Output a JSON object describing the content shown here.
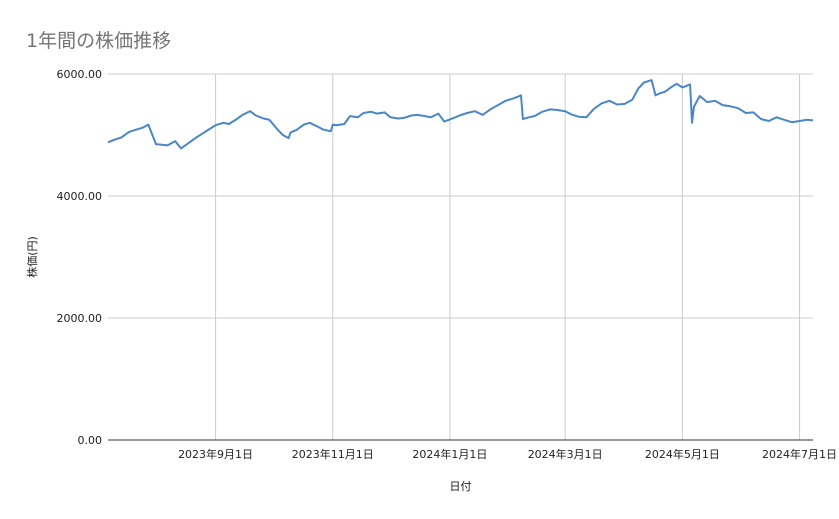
{
  "chart_data": {
    "type": "line",
    "title": "1年間の株価推移",
    "xlabel": "日付",
    "ylabel": "株価(円)",
    "ylim": [
      0,
      6000
    ],
    "yticks": [
      {
        "value": 0,
        "label": "0.00"
      },
      {
        "value": 2000,
        "label": "2000.00"
      },
      {
        "value": 4000,
        "label": "4000.00"
      },
      {
        "value": 6000,
        "label": "6000.00"
      }
    ],
    "xlim": [
      "2023-07-07",
      "2024-07-08"
    ],
    "xticks": [
      {
        "date": "2023-09-01",
        "label": "2023年9月1日"
      },
      {
        "date": "2023-11-01",
        "label": "2023年11月1日"
      },
      {
        "date": "2024-01-01",
        "label": "2024年1月1日"
      },
      {
        "date": "2024-03-01",
        "label": "2024年3月1日"
      },
      {
        "date": "2024-05-01",
        "label": "2024年5月1日"
      },
      {
        "date": "2024-07-01",
        "label": "2024年7月1日"
      }
    ],
    "grid": true,
    "line_color": "#4a86c8",
    "series": [
      {
        "x": [
          "2023-07-07",
          "2023-07-10",
          "2023-07-14",
          "2023-07-18",
          "2023-07-21",
          "2023-07-25",
          "2023-07-28",
          "2023-08-01",
          "2023-08-04",
          "2023-08-07",
          "2023-08-11",
          "2023-08-14",
          "2023-08-18",
          "2023-08-22",
          "2023-08-25",
          "2023-08-29",
          "2023-09-01",
          "2023-09-05",
          "2023-09-08",
          "2023-09-12",
          "2023-09-15",
          "2023-09-19",
          "2023-09-22",
          "2023-09-26",
          "2023-09-29",
          "2023-10-03",
          "2023-10-06",
          "2023-10-09",
          "2023-10-10",
          "2023-10-13",
          "2023-10-17",
          "2023-10-20",
          "2023-10-24",
          "2023-10-27",
          "2023-10-31",
          "2023-11-01",
          "2023-11-03",
          "2023-11-07",
          "2023-11-10",
          "2023-11-14",
          "2023-11-17",
          "2023-11-21",
          "2023-11-24",
          "2023-11-28",
          "2023-12-01",
          "2023-12-05",
          "2023-12-08",
          "2023-12-12",
          "2023-12-15",
          "2023-12-19",
          "2023-12-22",
          "2023-12-26",
          "2023-12-29",
          "2024-01-03",
          "2024-01-06",
          "2024-01-10",
          "2024-01-14",
          "2024-01-18",
          "2024-01-22",
          "2024-01-26",
          "2024-01-30",
          "2024-02-03",
          "2024-02-07",
          "2024-02-08",
          "2024-02-11",
          "2024-02-14",
          "2024-02-18",
          "2024-02-22",
          "2024-02-26",
          "2024-03-01",
          "2024-03-04",
          "2024-03-08",
          "2024-03-12",
          "2024-03-16",
          "2024-03-20",
          "2024-03-24",
          "2024-03-28",
          "2024-04-01",
          "2024-04-05",
          "2024-04-08",
          "2024-04-11",
          "2024-04-15",
          "2024-04-17",
          "2024-04-19",
          "2024-04-22",
          "2024-04-25",
          "2024-04-28",
          "2024-05-01",
          "2024-05-05",
          "2024-05-06",
          "2024-05-07",
          "2024-05-10",
          "2024-05-14",
          "2024-05-18",
          "2024-05-22",
          "2024-05-26",
          "2024-05-30",
          "2024-06-03",
          "2024-06-07",
          "2024-06-11",
          "2024-06-15",
          "2024-06-19",
          "2024-06-23",
          "2024-06-27",
          "2024-07-01",
          "2024-07-05",
          "2024-07-08"
        ],
        "y": [
          4880,
          4920,
          4960,
          5050,
          5080,
          5120,
          5170,
          4850,
          4840,
          4830,
          4900,
          4780,
          4870,
          4960,
          5020,
          5100,
          5160,
          5200,
          5180,
          5260,
          5330,
          5390,
          5320,
          5270,
          5250,
          5100,
          5000,
          4950,
          5040,
          5080,
          5170,
          5200,
          5140,
          5090,
          5060,
          5170,
          5160,
          5180,
          5310,
          5290,
          5360,
          5380,
          5350,
          5370,
          5290,
          5270,
          5280,
          5320,
          5330,
          5310,
          5290,
          5350,
          5220,
          5280,
          5320,
          5360,
          5390,
          5330,
          5420,
          5490,
          5560,
          5600,
          5650,
          5260,
          5290,
          5310,
          5380,
          5420,
          5410,
          5390,
          5340,
          5300,
          5290,
          5430,
          5520,
          5560,
          5500,
          5510,
          5580,
          5760,
          5860,
          5900,
          5650,
          5680,
          5710,
          5780,
          5840,
          5780,
          5830,
          5200,
          5460,
          5640,
          5540,
          5560,
          5490,
          5470,
          5440,
          5360,
          5370,
          5260,
          5230,
          5290,
          5250,
          5210,
          5230,
          5250,
          5240
        ]
      }
    ]
  }
}
